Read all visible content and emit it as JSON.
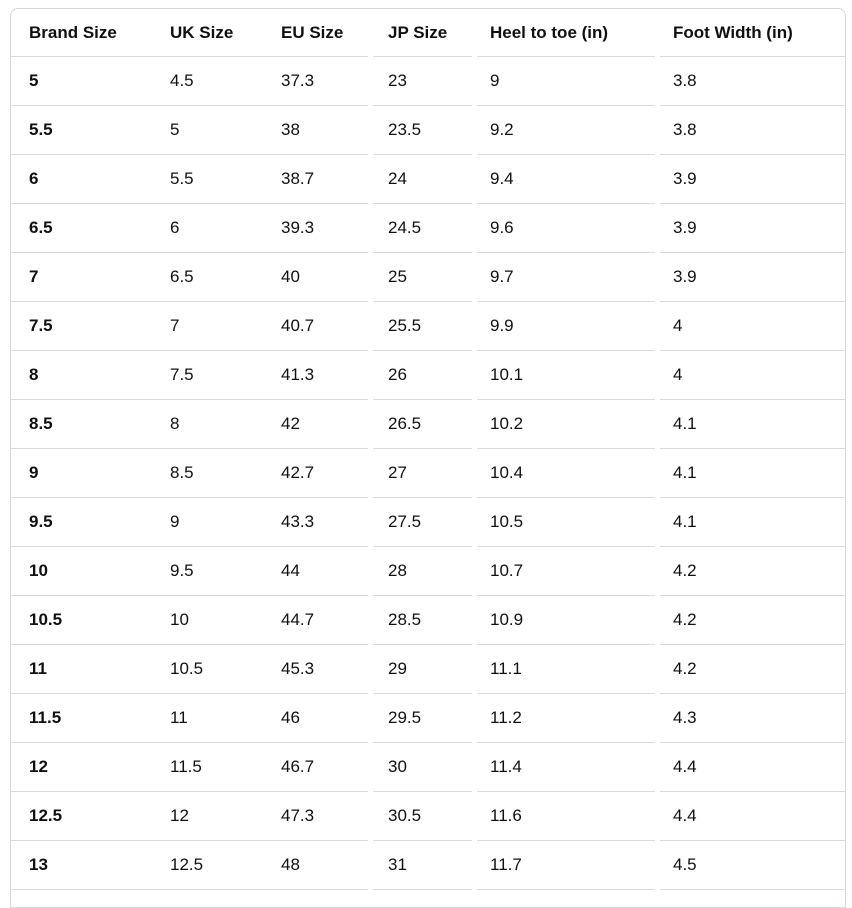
{
  "size_chart": {
    "columns": [
      "Brand Size",
      "UK Size",
      "EU Size",
      "JP Size",
      "Heel to toe (in)",
      "Foot Width (in)"
    ],
    "rows": [
      [
        "5",
        "4.5",
        "37.3",
        "23",
        "9",
        "3.8"
      ],
      [
        "5.5",
        "5",
        "38",
        "23.5",
        "9.2",
        "3.8"
      ],
      [
        "6",
        "5.5",
        "38.7",
        "24",
        "9.4",
        "3.9"
      ],
      [
        "6.5",
        "6",
        "39.3",
        "24.5",
        "9.6",
        "3.9"
      ],
      [
        "7",
        "6.5",
        "40",
        "25",
        "9.7",
        "3.9"
      ],
      [
        "7.5",
        "7",
        "40.7",
        "25.5",
        "9.9",
        "4"
      ],
      [
        "8",
        "7.5",
        "41.3",
        "26",
        "10.1",
        "4"
      ],
      [
        "8.5",
        "8",
        "42",
        "26.5",
        "10.2",
        "4.1"
      ],
      [
        "9",
        "8.5",
        "42.7",
        "27",
        "10.4",
        "4.1"
      ],
      [
        "9.5",
        "9",
        "43.3",
        "27.5",
        "10.5",
        "4.1"
      ],
      [
        "10",
        "9.5",
        "44",
        "28",
        "10.7",
        "4.2"
      ],
      [
        "10.5",
        "10",
        "44.7",
        "28.5",
        "10.9",
        "4.2"
      ],
      [
        "11",
        "10.5",
        "45.3",
        "29",
        "11.1",
        "4.2"
      ],
      [
        "11.5",
        "11",
        "46",
        "29.5",
        "11.2",
        "4.3"
      ],
      [
        "12",
        "11.5",
        "46.7",
        "30",
        "11.4",
        "4.4"
      ],
      [
        "12.5",
        "12",
        "47.3",
        "30.5",
        "11.6",
        "4.4"
      ],
      [
        "13",
        "12.5",
        "48",
        "31",
        "11.7",
        "4.5"
      ]
    ]
  },
  "colors": {
    "text": "#0f1111",
    "outer_border": "#d5d9d9",
    "row_divider": "#d9dcdc",
    "background": "#ffffff"
  }
}
